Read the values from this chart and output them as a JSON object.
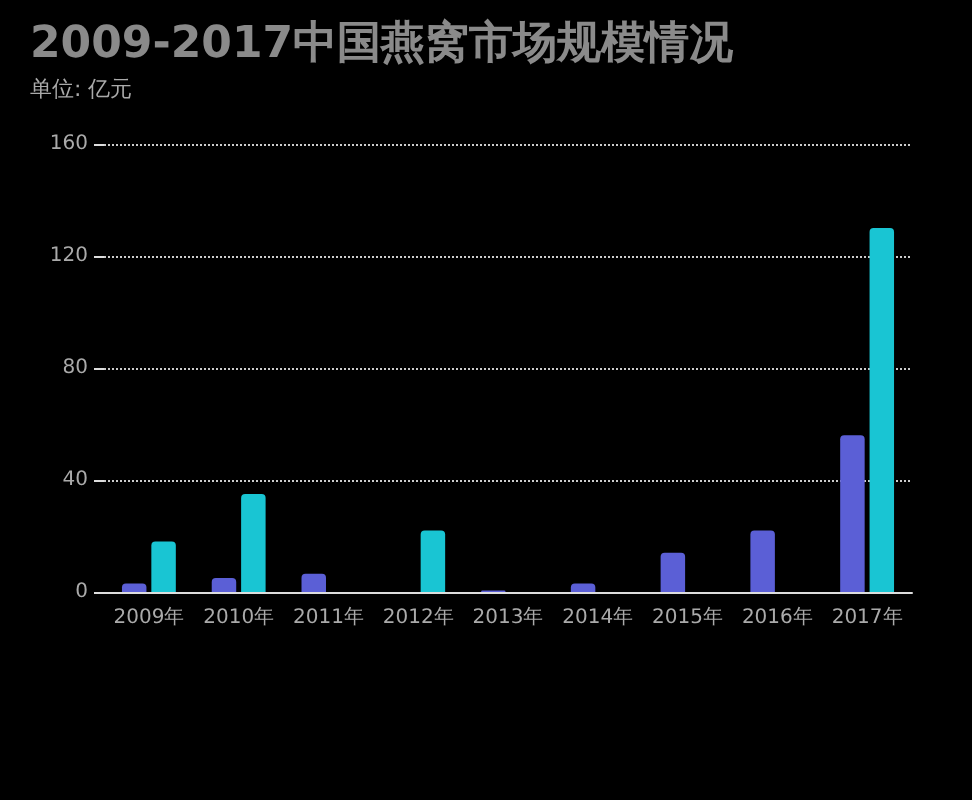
{
  "chart_data": {
    "type": "bar",
    "title": "2009-2017中国燕窝市场规模情况",
    "subtitle": "单位: 亿元",
    "categories": [
      "2009年",
      "2010年",
      "2011年",
      "2012年",
      "2013年",
      "2014年",
      "2015年",
      "2016年",
      "2017年"
    ],
    "series": [
      {
        "color": "#5b5fd6",
        "values": [
          3,
          5,
          6.5,
          0,
          0.5,
          3,
          14,
          22,
          56
        ]
      },
      {
        "color": "#19c5d3",
        "values": [
          18,
          35,
          null,
          22,
          null,
          null,
          null,
          null,
          130
        ]
      }
    ],
    "ylim": [
      0,
      160
    ],
    "yticks": [
      0,
      40,
      80,
      120,
      160
    ],
    "grid": "y",
    "line_style": "dotted"
  }
}
